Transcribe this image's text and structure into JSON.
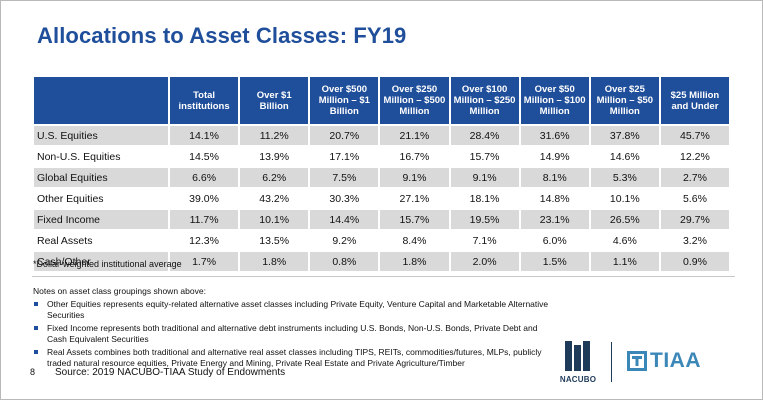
{
  "title": "Allocations to Asset Classes: FY19",
  "table": {
    "columns": [
      "Total institutions",
      "Over $1 Billion",
      "Over $500 Million – $1 Billion",
      "Over $250 Million – $500 Million",
      "Over $100 Million – $250 Million",
      "Over $50 Million – $100 Million",
      "Over $25 Million – $50 Million",
      "$25 Million and Under"
    ],
    "rows": [
      {
        "label": "U.S. Equities",
        "values": [
          "14.1%",
          "11.2%",
          "20.7%",
          "21.1%",
          "28.4%",
          "31.6%",
          "37.8%",
          "45.7%"
        ]
      },
      {
        "label": "Non-U.S. Equities",
        "values": [
          "14.5%",
          "13.9%",
          "17.1%",
          "16.7%",
          "15.7%",
          "14.9%",
          "14.6%",
          "12.2%"
        ]
      },
      {
        "label": "Global Equities",
        "values": [
          "6.6%",
          "6.2%",
          "7.5%",
          "9.1%",
          "9.1%",
          "8.1%",
          "5.3%",
          "2.7%"
        ]
      },
      {
        "label": "Other Equities",
        "values": [
          "39.0%",
          "43.2%",
          "30.3%",
          "27.1%",
          "18.1%",
          "14.8%",
          "10.1%",
          "5.6%"
        ]
      },
      {
        "label": "Fixed Income",
        "values": [
          "11.7%",
          "10.1%",
          "14.4%",
          "15.7%",
          "19.5%",
          "23.1%",
          "26.5%",
          "29.7%"
        ]
      },
      {
        "label": "Real Assets",
        "values": [
          "12.3%",
          "13.5%",
          "9.2%",
          "8.4%",
          "7.1%",
          "6.0%",
          "4.6%",
          "3.2%"
        ]
      },
      {
        "label": "Cash/Other",
        "values": [
          "1.7%",
          "1.8%",
          "0.8%",
          "1.8%",
          "2.0%",
          "1.5%",
          "1.1%",
          "0.9%"
        ]
      }
    ]
  },
  "footnote": "*Dollar-weighted institutional average",
  "notes": {
    "title": "Notes on asset class groupings shown above:",
    "items": [
      "Other Equities represents equity-related alternative asset classes including Private Equity, Venture Capital and Marketable Alternative Securities",
      "Fixed Income represents both traditional and alternative debt instruments including U.S. Bonds, Non-U.S. Bonds, Private Debt and Cash Equivalent Securities",
      "Real Assets combines both traditional and alternative real asset classes including TIPS, REITs, commodities/futures, MLPs, publicly traded natural resource equities, Private Energy and Mining, Private Real Estate and Private Agriculture/Timber"
    ]
  },
  "page_number": "8",
  "source": "Source: 2019 NACUBO-TIAA Study of Endowments",
  "logos": {
    "nacubo": "NACUBO",
    "tiaa": "TIAA"
  },
  "colors": {
    "accent": "#1f4e9a",
    "row_shade": "#d9d9d9",
    "tiaa": "#3b87b8"
  }
}
